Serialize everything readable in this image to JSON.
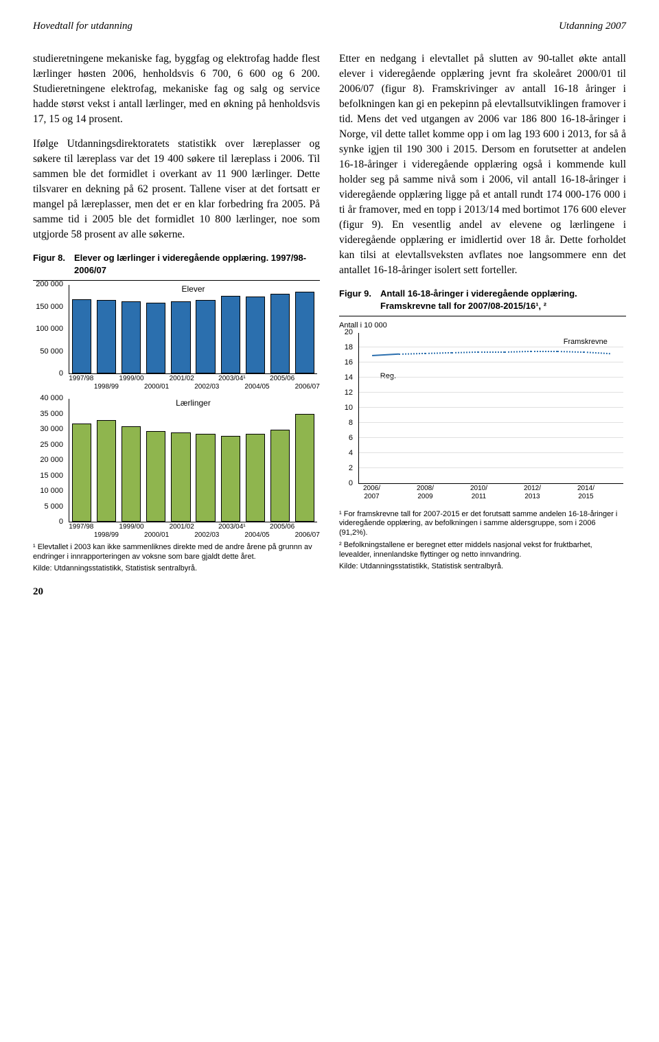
{
  "header": {
    "left": "Hovedtall for utdanning",
    "right": "Utdanning 2007"
  },
  "left_col": {
    "p1": "studieretningene mekaniske fag, byggfag og elektrofag hadde flest lærlinger høsten 2006, henholdsvis 6 700, 6 600 og 6 200. Studieretningene elektrofag, mekaniske fag og salg og service hadde størst vekst i antall lærlinger, med en økning på henholdsvis 17, 15 og 14 prosent.",
    "p2": "Ifølge Utdanningsdirektoratets statistikk over læreplasser og søkere til læreplass var det 19 400 søkere til læreplass i 2006. Til sammen ble det formidlet i overkant av 11 900 lærlinger. Dette tilsvarer en dekning på 62 prosent. Tallene viser at det fortsatt er mangel på læreplasser, men det er en klar forbedring fra 2005. På samme tid i 2005 ble det formidlet 10 800 lærlinger, noe som utgjorde 58 prosent av alle søkerne."
  },
  "right_col": {
    "p1": "Etter en nedgang i elevtallet på slutten av 90-tallet økte antall elever i videregående opplæring jevnt fra skoleåret 2000/01 til 2006/07 (figur 8). Framskrivinger av antall 16-18 åringer i befolkningen kan gi en pekepinn på elevtallsutviklingen framover i tid. Mens det ved utgangen av 2006 var 186 800 16-18-åringer i Norge, vil dette tallet komme opp i om lag 193 600 i 2013, for så å synke igjen til 190 300 i 2015. Dersom en forutsetter at andelen 16-18-åringer i videregående opplæring også i kommende kull holder seg på samme nivå som i 2006, vil antall 16-18-åringer i videregående opplæring ligge på et antall rundt 174 000-176 000 i ti år framover, med en topp i 2013/14 med bortimot 176 600 elever (figur 9). En vesentlig andel av elevene og lærlingene i videregående opplæring er imidlertid over 18 år. Dette forholdet kan tilsi at elevtallsveksten avflates noe langsommere enn det antallet 16-18-åringer isolert sett forteller."
  },
  "fig8": {
    "number": "Figur 8.",
    "title": "Elever og lærlinger i videregående opplæring. 1997/98-2006/07",
    "elever": {
      "label": "Elever",
      "ymax": 200000,
      "yticks": [
        0,
        50000,
        100000,
        150000,
        200000
      ],
      "ytick_labels": [
        "0",
        "50 000",
        "100 000",
        "150 000",
        "200 000"
      ],
      "x_labels_top": [
        "1997/98",
        "1999/00",
        "2001/02",
        "2003/04¹",
        "2005/06"
      ],
      "x_labels_bot": [
        "1998/99",
        "2000/01",
        "2002/03",
        "2004/05",
        "2006/07"
      ],
      "values": [
        168000,
        165000,
        162000,
        160000,
        162000,
        166000,
        175000,
        174000,
        180000,
        185000
      ],
      "bar_color": "#2b6fae"
    },
    "laerlinger": {
      "label": "Lærlinger",
      "ymax": 40000,
      "yticks": [
        0,
        5000,
        10000,
        15000,
        20000,
        25000,
        30000,
        35000,
        40000
      ],
      "ytick_labels": [
        "0",
        "5 000",
        "10 000",
        "15 000",
        "20 000",
        "25 000",
        "30 000",
        "35 000",
        "40 000"
      ],
      "x_labels_top": [
        "1997/98",
        "1999/00",
        "2001/02",
        "2003/04¹",
        "2005/06"
      ],
      "x_labels_bot": [
        "1998/99",
        "2000/01",
        "2002/03",
        "2004/05",
        "2006/07"
      ],
      "values": [
        32000,
        33000,
        31000,
        29500,
        29000,
        28500,
        28000,
        28500,
        30000,
        35000
      ],
      "bar_color": "#8fb54e"
    },
    "footnote": "¹ Elevtallet i 2003 kan ikke sammenliknes direkte med de andre årene på grunnn av endringer i innrapporteringen av voksne som bare gjaldt dette året.",
    "source": "Kilde: Utdanningsstatistikk, Statistisk sentralbyrå."
  },
  "fig9": {
    "number": "Figur 9.",
    "title": "Antall 16-18-åringer i videregående opplæring. Framskrevne tall for 2007/08-2015/16¹, ²",
    "axis_title": "Antall i 10 000",
    "ymax": 20,
    "yticks": [
      0,
      2,
      4,
      6,
      8,
      10,
      12,
      14,
      16,
      18,
      20
    ],
    "x_labels_top": [
      "2006/",
      "2008/",
      "2010/",
      "2012/",
      "2014/"
    ],
    "x_labels_bot": [
      "2007",
      "2009",
      "2011",
      "2013",
      "2015"
    ],
    "reg_label": "Reg.",
    "frams_label": "Framskrevne",
    "reg_points": [
      [
        0,
        17.0
      ],
      [
        1,
        17.2
      ]
    ],
    "frams_points": [
      [
        1,
        17.2
      ],
      [
        2,
        17.3
      ],
      [
        3,
        17.4
      ],
      [
        4,
        17.5
      ],
      [
        5,
        17.5
      ],
      [
        6,
        17.6
      ],
      [
        7,
        17.6
      ],
      [
        8,
        17.5
      ],
      [
        9,
        17.3
      ]
    ],
    "reg_color": "#2b6fae",
    "frams_color": "#2b6fae",
    "footnote1": "¹ For framskrevne tall for 2007-2015 er det forutsatt samme andelen 16-18-åringer i videregående opplæring, av befolkningen i samme aldersgruppe, som i 2006 (91,2%).",
    "footnote2": "² Befolkningstallene er beregnet etter middels nasjonal vekst for fruktbarhet, levealder, innenlandske flyttinger og netto innvandring.",
    "source": "Kilde: Utdanningsstatistikk, Statistisk sentralbyrå."
  },
  "page_number": "20"
}
